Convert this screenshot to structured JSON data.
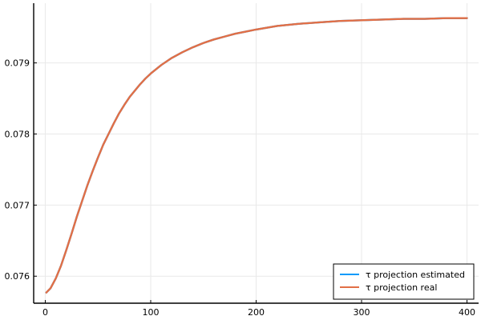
{
  "chart_data": {
    "type": "line",
    "title": "",
    "xlabel": "",
    "ylabel": "",
    "xlim": [
      -11,
      411
    ],
    "ylim": [
      0.07562,
      0.07984
    ],
    "xticks": [
      0,
      100,
      200,
      300,
      400
    ],
    "xtick_labels": [
      "0",
      "100",
      "200",
      "300",
      "400"
    ],
    "yticks": [
      0.076,
      0.077,
      0.078,
      0.079
    ],
    "ytick_labels": [
      "0.076",
      "0.077",
      "0.078",
      "0.079"
    ],
    "grid": true,
    "legend_position": "bottom-right",
    "x": [
      1,
      5,
      10,
      15,
      20,
      25,
      30,
      35,
      40,
      45,
      50,
      55,
      60,
      65,
      70,
      75,
      80,
      85,
      90,
      95,
      100,
      110,
      120,
      130,
      140,
      150,
      160,
      170,
      180,
      190,
      200,
      220,
      240,
      260,
      280,
      300,
      320,
      340,
      360,
      380,
      400
    ],
    "series": [
      {
        "name": "τ projection estimated",
        "color": "#009AFA",
        "values": [
          0.07577,
          0.07583,
          0.07597,
          0.07615,
          0.07637,
          0.0766,
          0.07684,
          0.07706,
          0.07728,
          0.07748,
          0.07767,
          0.07785,
          0.078,
          0.07815,
          0.07829,
          0.07841,
          0.07852,
          0.07861,
          0.0787,
          0.07878,
          0.07885,
          0.07897,
          0.07907,
          0.07915,
          0.07922,
          0.07928,
          0.07933,
          0.07937,
          0.07941,
          0.07944,
          0.07947,
          0.07952,
          0.07955,
          0.07957,
          0.07959,
          0.0796,
          0.07961,
          0.07962,
          0.07962,
          0.07963,
          0.07963
        ]
      },
      {
        "name": "τ projection real",
        "color": "#E26F46",
        "values": [
          0.07577,
          0.07583,
          0.07597,
          0.07615,
          0.07637,
          0.0766,
          0.07684,
          0.07706,
          0.07728,
          0.07748,
          0.07767,
          0.07785,
          0.078,
          0.07815,
          0.07829,
          0.07841,
          0.07852,
          0.07861,
          0.0787,
          0.07878,
          0.07885,
          0.07897,
          0.07907,
          0.07915,
          0.07922,
          0.07928,
          0.07933,
          0.07937,
          0.07941,
          0.07944,
          0.07947,
          0.07952,
          0.07955,
          0.07957,
          0.07959,
          0.0796,
          0.07961,
          0.07962,
          0.07962,
          0.07963,
          0.07963
        ]
      }
    ]
  }
}
